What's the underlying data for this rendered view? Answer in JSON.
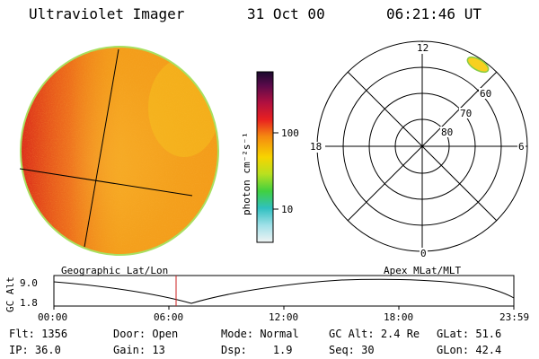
{
  "header": {
    "instrument": "Ultraviolet Imager",
    "date": "31 Oct 00",
    "time": "06:21:46 UT"
  },
  "colorbar": {
    "unit_label": "photon cm⁻²s⁻¹",
    "ticks": [
      {
        "value": 100,
        "label": "100"
      },
      {
        "value": 10,
        "label": "10"
      }
    ]
  },
  "polar_plot": {
    "mlt_labels": {
      "top": "12",
      "left": "18",
      "right": "6",
      "bottom": "0"
    },
    "lat_labels": [
      "60",
      "70",
      "80"
    ]
  },
  "altitude_panel": {
    "left_title": "Geographic Lat/Lon",
    "right_title": "Apex MLat/MLT",
    "axis_label": "GC Alt",
    "y_ticks": [
      "9.0",
      "1.8"
    ],
    "x_ticks": [
      "00:00",
      "06:00",
      "12:00",
      "18:00",
      "23:59"
    ],
    "current_time_marker": "06:21:46"
  },
  "status": {
    "row1": [
      {
        "label": "Flt:",
        "value": "1356"
      },
      {
        "label": "Door:",
        "value": "Open"
      },
      {
        "label": "Mode:",
        "value": "Normal"
      },
      {
        "label": "GC Alt:",
        "value": "2.4 Re"
      },
      {
        "label": "GLat:",
        "value": "51.6"
      }
    ],
    "row2": [
      {
        "label": "IP:",
        "value": "36.0"
      },
      {
        "label": "Gain:",
        "value": "13"
      },
      {
        "label": "Dsp:",
        "value": "1.9"
      },
      {
        "label": "Seq:",
        "value": "30"
      },
      {
        "label": "GLon:",
        "value": "42.4"
      }
    ]
  },
  "colors": {
    "disk_base": "#f6a21c",
    "disk_hot": "#e0281c",
    "curve": "#000000",
    "marker": "#cc2222"
  }
}
